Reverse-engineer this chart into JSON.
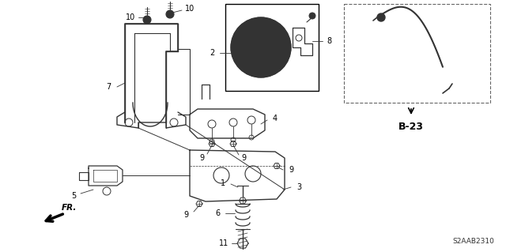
{
  "bg_color": "#ffffff",
  "part_code": "S2AAB2310",
  "ref_label": "B-23",
  "line_color": "#333333",
  "text_color": "#000000",
  "fig_w": 6.4,
  "fig_h": 3.19,
  "dpi": 100
}
